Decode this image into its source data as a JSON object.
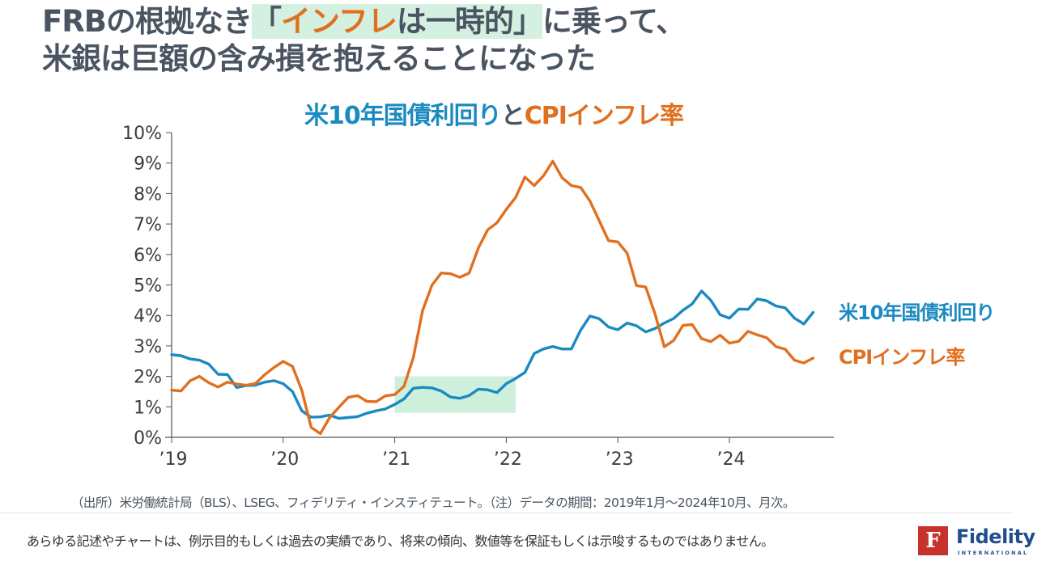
{
  "headline": {
    "line1_prefix": "FRBの根拠なき",
    "quote_open": "「",
    "quote_orange": "インフレ",
    "quote_rest": "は一時的",
    "quote_close": "」",
    "line1_suffix": "に乗って、",
    "line2": "米銀は巨額の含み損を抱えることになった"
  },
  "colors": {
    "treasury": "#1a8ac0",
    "cpi": "#e07020",
    "highlight": "#c8eed9",
    "axis": "#555555",
    "text": "#454f5b"
  },
  "chart_data": {
    "type": "line",
    "title": "米10年国債利回りとCPIインフレ率",
    "title_parts": {
      "series1": "米10年国債利回り",
      "connector": "と",
      "series2": "CPIインフレ率"
    },
    "xlabel": "",
    "ylabel": "",
    "x_start": "2019-01",
    "x_end": "2024-10",
    "frequency": "monthly",
    "x_tick_labels": [
      "’19",
      "’20",
      "’21",
      "’22",
      "’23",
      "’24"
    ],
    "y_tick_labels": [
      "0%",
      "1%",
      "2%",
      "3%",
      "4%",
      "5%",
      "6%",
      "7%",
      "8%",
      "9%",
      "10%"
    ],
    "ylim": [
      0,
      10
    ],
    "xlim_years": [
      2019,
      2024.95
    ],
    "grid": false,
    "legend": "right-end labels",
    "highlight_region": {
      "x_from": "2021-01",
      "x_to": "2022-02",
      "y_from": 0.8,
      "y_to": 2.0,
      "meaning": "transitory-inflation period"
    },
    "series": [
      {
        "name": "米10年国債利回り",
        "values": [
          2.71,
          2.68,
          2.57,
          2.53,
          2.4,
          2.07,
          2.06,
          1.63,
          1.7,
          1.71,
          1.81,
          1.86,
          1.76,
          1.5,
          0.87,
          0.66,
          0.67,
          0.73,
          0.62,
          0.65,
          0.68,
          0.79,
          0.87,
          0.93,
          1.08,
          1.26,
          1.61,
          1.64,
          1.62,
          1.52,
          1.32,
          1.28,
          1.37,
          1.58,
          1.56,
          1.47,
          1.76,
          1.93,
          2.13,
          2.75,
          2.9,
          2.98,
          2.9,
          2.9,
          3.52,
          3.98,
          3.89,
          3.62,
          3.53,
          3.75,
          3.66,
          3.46,
          3.57,
          3.75,
          3.9,
          4.17,
          4.38,
          4.8,
          4.5,
          4.02,
          3.91,
          4.21,
          4.2,
          4.54,
          4.48,
          4.31,
          4.25,
          3.91,
          3.72,
          4.1
        ]
      },
      {
        "name": "CPIインフレ率",
        "values": [
          1.55,
          1.52,
          1.86,
          2.0,
          1.79,
          1.65,
          1.81,
          1.75,
          1.71,
          1.76,
          2.05,
          2.29,
          2.49,
          2.33,
          1.54,
          0.33,
          0.12,
          0.65,
          0.99,
          1.31,
          1.37,
          1.18,
          1.17,
          1.36,
          1.4,
          1.68,
          2.62,
          4.16,
          4.99,
          5.39,
          5.37,
          5.25,
          5.39,
          6.22,
          6.81,
          7.04,
          7.48,
          7.87,
          8.54,
          8.26,
          8.58,
          9.06,
          8.52,
          8.26,
          8.2,
          7.75,
          7.11,
          6.45,
          6.41,
          6.04,
          4.98,
          4.93,
          4.05,
          2.97,
          3.18,
          3.67,
          3.7,
          3.24,
          3.14,
          3.35,
          3.09,
          3.15,
          3.48,
          3.36,
          3.27,
          2.98,
          2.89,
          2.53,
          2.44,
          2.6
        ]
      }
    ]
  },
  "source_note": "（出所）米労働統計局（BLS）、LSEG、フィデリティ・インスティテュート。（注）データの期間：2019年1月～2024年10月、月次。",
  "disclaimer": "あらゆる記述やチャートは、例示目的もしくは過去の実績であり、将来の傾向、数値等を保証もしくは示唆するものではありません。",
  "logo": {
    "mark": "F",
    "name": "Fidelity",
    "sub": "INTERNATIONAL"
  }
}
